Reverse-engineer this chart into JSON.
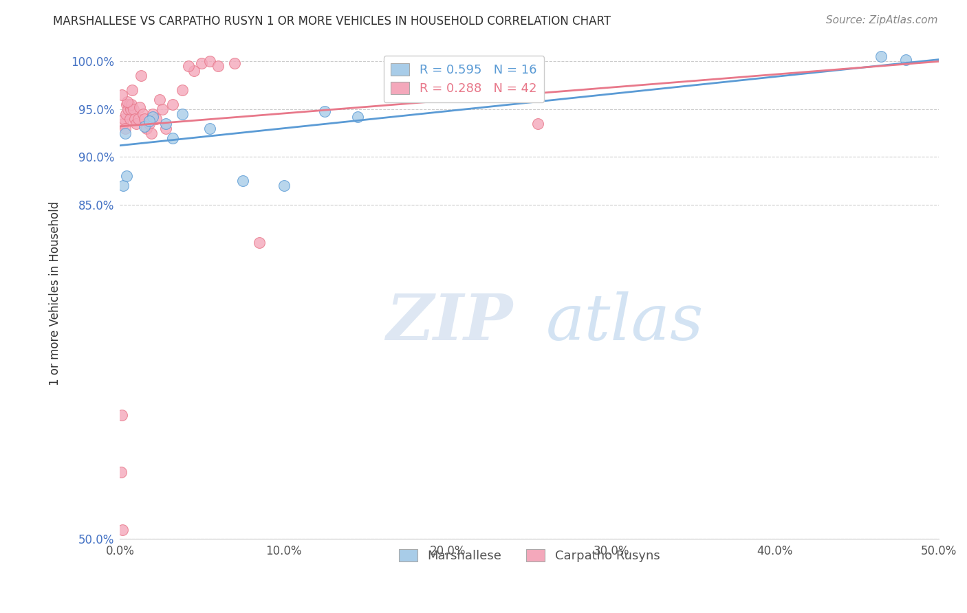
{
  "title": "MARSHALLESE VS CARPATHO RUSYN 1 OR MORE VEHICLES IN HOUSEHOLD CORRELATION CHART",
  "source": "Source: ZipAtlas.com",
  "ylabel": "1 or more Vehicles in Household",
  "xlim": [
    0.0,
    50.0
  ],
  "ylim": [
    50.0,
    101.5
  ],
  "yticks": [
    50.0,
    85.0,
    90.0,
    95.0,
    100.0
  ],
  "ytick_labels": [
    "50.0%",
    "85.0%",
    "90.0%",
    "95.0%",
    "100.0%"
  ],
  "xticks": [
    0.0,
    10.0,
    20.0,
    30.0,
    40.0,
    50.0
  ],
  "xtick_labels": [
    "0.0%",
    "10.0%",
    "20.0%",
    "30.0%",
    "40.0%",
    "50.0%"
  ],
  "blue_label": "Marshallese",
  "pink_label": "Carpatho Rusyns",
  "R_blue": 0.595,
  "N_blue": 16,
  "R_pink": 0.288,
  "N_pink": 42,
  "blue_color": "#a8cce8",
  "pink_color": "#f4a8bb",
  "blue_line_color": "#5b9bd5",
  "pink_line_color": "#e8788a",
  "blue_scatter_edge": "#5b9bd5",
  "pink_scatter_edge": "#e8788a",
  "blue_x": [
    0.2,
    0.4,
    1.5,
    2.0,
    2.8,
    3.2,
    5.5,
    7.5,
    10.0,
    12.5,
    14.5,
    48.0,
    46.5,
    0.3,
    1.8,
    3.8
  ],
  "blue_y": [
    87.0,
    88.0,
    93.2,
    94.2,
    93.5,
    92.0,
    93.0,
    87.5,
    87.0,
    94.8,
    94.2,
    100.2,
    100.5,
    92.5,
    93.8,
    94.5
  ],
  "pink_x": [
    0.05,
    0.1,
    0.15,
    0.2,
    0.25,
    0.3,
    0.35,
    0.4,
    0.5,
    0.55,
    0.6,
    0.65,
    0.7,
    0.8,
    0.9,
    1.0,
    1.1,
    1.2,
    1.4,
    1.5,
    1.6,
    1.8,
    2.0,
    2.2,
    2.4,
    2.8,
    3.2,
    3.8,
    4.5,
    5.0,
    5.5,
    6.0,
    7.0,
    8.5,
    25.5,
    1.3,
    0.45,
    0.75,
    1.9,
    2.6,
    4.2,
    0.12
  ],
  "pink_y": [
    57.0,
    63.0,
    51.0,
    93.5,
    94.0,
    93.0,
    94.5,
    95.5,
    95.0,
    95.5,
    94.0,
    95.0,
    95.5,
    95.0,
    94.0,
    93.5,
    94.0,
    95.2,
    94.5,
    94.0,
    93.0,
    93.5,
    94.5,
    94.0,
    96.0,
    93.0,
    95.5,
    97.0,
    99.0,
    99.8,
    100.0,
    99.5,
    99.8,
    81.0,
    93.5,
    98.5,
    95.8,
    97.0,
    92.5,
    95.0,
    99.5,
    96.5
  ],
  "blue_trendline_x": [
    0.0,
    50.0
  ],
  "blue_trendline_y": [
    91.2,
    100.2
  ],
  "pink_trendline_x": [
    0.0,
    50.0
  ],
  "pink_trendline_y": [
    93.2,
    100.0
  ],
  "watermark_zip": "ZIP",
  "watermark_atlas": "atlas",
  "background_color": "#ffffff",
  "grid_color": "#cccccc",
  "title_fontsize": 12,
  "source_fontsize": 11,
  "axis_label_fontsize": 12,
  "tick_fontsize": 12,
  "legend_fontsize": 13
}
